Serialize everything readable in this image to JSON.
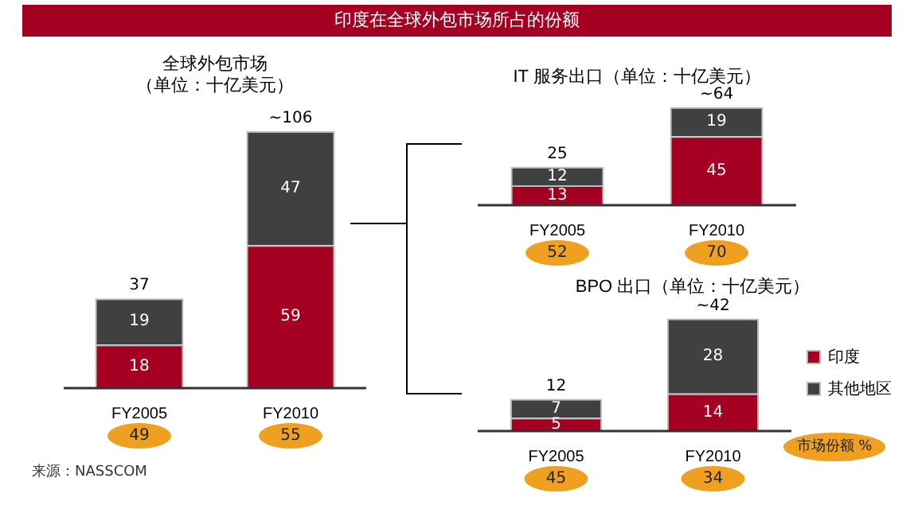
{
  "chart_data": [
    {
      "type": "bar",
      "stacked": true,
      "title": "全球外包市场（单位：十亿美元）",
      "categories": [
        "FY2005",
        "FY2010"
      ],
      "series": [
        {
          "color": "#a50021",
          "values": [
            18,
            59
          ]
        },
        {
          "color": "#404040",
          "values": [
            19,
            47
          ]
        }
      ],
      "data_labels": true,
      "totals": [
        "37",
        "~106"
      ],
      "legend": false,
      "annotations": [
        "印度在全球外包市场所占的份额",
        "来源：NASSCOM",
        "49",
        "55"
      ]
    },
    {
      "type": "bar",
      "stacked": true,
      "title": "IT 服务出口（单位：十亿美元）",
      "categories": [
        "FY2005",
        "FY2010"
      ],
      "series": [
        {
          "color": "#a50021",
          "values": [
            13,
            45
          ]
        },
        {
          "color": "#404040",
          "values": [
            12,
            19
          ]
        }
      ],
      "data_labels": true,
      "totals": [
        "25",
        "~64"
      ],
      "legend": false,
      "annotations": [
        "52",
        "70"
      ]
    },
    {
      "type": "bar",
      "stacked": true,
      "title": "BPO 出口（单位：十亿美元）",
      "categories": [
        "FY2005",
        "FY2010"
      ],
      "series": [
        {
          "name": "印度",
          "color": "#a50021",
          "values": [
            5,
            14
          ]
        },
        {
          "name": "其他地区",
          "color": "#404040",
          "values": [
            7,
            28
          ]
        }
      ],
      "data_labels": true,
      "totals": [
        "12",
        "~42"
      ],
      "legend": "right",
      "annotations": [
        "市场份额 %",
        "45",
        "34"
      ]
    }
  ]
}
